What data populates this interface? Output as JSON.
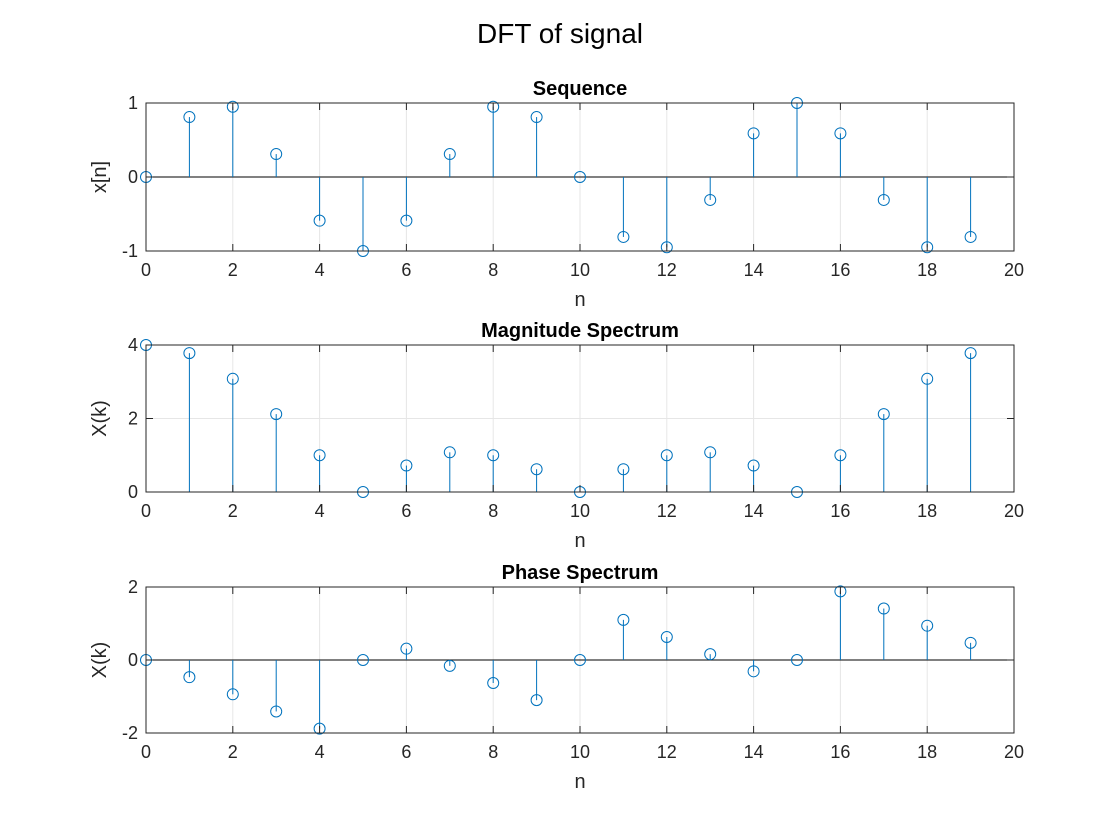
{
  "figure": {
    "suptitle": "DFT of signal"
  },
  "style": {
    "stem_color": "#0072BD",
    "baseline_color": "#000000",
    "grid_color": "#e6e6e6",
    "axes_color": "#262626"
  },
  "chart_data": [
    {
      "type": "stem",
      "title": "Sequence",
      "xlabel": "n",
      "ylabel": "x[n]",
      "xlim": [
        0,
        20
      ],
      "ylim": [
        -1,
        1
      ],
      "xticks": [
        0,
        2,
        4,
        6,
        8,
        10,
        12,
        14,
        16,
        18,
        20
      ],
      "yticks": [
        -1,
        0,
        1
      ],
      "grid": true,
      "x": [
        0,
        1,
        2,
        3,
        4,
        5,
        6,
        7,
        8,
        9,
        10,
        11,
        12,
        13,
        14,
        15,
        16,
        17,
        18,
        19
      ],
      "values": [
        0,
        0.81,
        0.95,
        0.31,
        -0.59,
        -1,
        -0.59,
        0.31,
        0.95,
        0.81,
        0,
        -0.81,
        -0.95,
        -0.31,
        0.59,
        1,
        0.59,
        -0.31,
        -0.95,
        -0.81
      ]
    },
    {
      "type": "stem",
      "title": "Magnitude Spectrum",
      "xlabel": "n",
      "ylabel": "X(k)",
      "xlim": [
        0,
        20
      ],
      "ylim": [
        0,
        4
      ],
      "xticks": [
        0,
        2,
        4,
        6,
        8,
        10,
        12,
        14,
        16,
        18,
        20
      ],
      "yticks": [
        0,
        2,
        4
      ],
      "grid": true,
      "x": [
        0,
        1,
        2,
        3,
        4,
        5,
        6,
        7,
        8,
        9,
        10,
        11,
        12,
        13,
        14,
        15,
        16,
        17,
        18,
        19
      ],
      "values": [
        4,
        3.78,
        3.08,
        2.12,
        1,
        0,
        0.72,
        1.08,
        1,
        0.62,
        0,
        0.62,
        1,
        1.08,
        0.72,
        0,
        1,
        2.12,
        3.08,
        3.78
      ]
    },
    {
      "type": "stem",
      "title": "Phase Spectrum",
      "xlabel": "n",
      "ylabel": "X(k)",
      "xlim": [
        0,
        20
      ],
      "ylim": [
        -2,
        2
      ],
      "xticks": [
        0,
        2,
        4,
        6,
        8,
        10,
        12,
        14,
        16,
        18,
        20
      ],
      "yticks": [
        -2,
        0,
        2
      ],
      "grid": true,
      "x": [
        0,
        1,
        2,
        3,
        4,
        5,
        6,
        7,
        8,
        9,
        10,
        11,
        12,
        13,
        14,
        15,
        16,
        17,
        18,
        19
      ],
      "values": [
        0,
        -0.47,
        -0.94,
        -1.41,
        -1.88,
        0,
        0.31,
        -0.16,
        -0.63,
        -1.1,
        0,
        1.1,
        0.63,
        0.16,
        -0.31,
        0,
        1.88,
        1.41,
        0.94,
        0.47
      ]
    }
  ]
}
